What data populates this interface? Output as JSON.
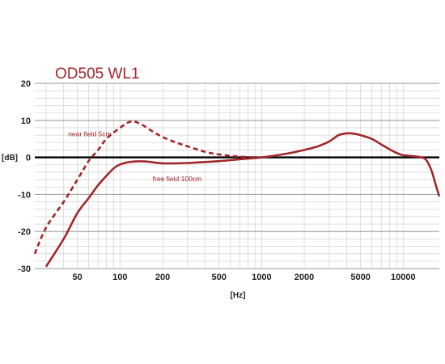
{
  "chart_data": {
    "type": "line",
    "title": "OD505 WL1",
    "xlabel": "[Hz]",
    "ylabel": "[dB]",
    "xscale": "log",
    "xlim": [
      25,
      18000
    ],
    "ylim": [
      -30,
      20
    ],
    "x_ticks": [
      50,
      100,
      200,
      500,
      1000,
      2000,
      5000,
      10000
    ],
    "y_ticks": [
      20,
      10,
      0,
      -10,
      -20,
      -30
    ],
    "grid": true,
    "colors": {
      "curve": "#a1272b",
      "zero_line": "#000000",
      "grid": "#d6d6d6"
    },
    "series": [
      {
        "name": "near field 5cm",
        "style": "dashed",
        "points": [
          [
            25,
            -26
          ],
          [
            30,
            -19
          ],
          [
            40,
            -12
          ],
          [
            50,
            -6
          ],
          [
            60,
            -1
          ],
          [
            70,
            2
          ],
          [
            80,
            5
          ],
          [
            100,
            8
          ],
          [
            120,
            9.7
          ],
          [
            140,
            9
          ],
          [
            170,
            7
          ],
          [
            200,
            5.5
          ],
          [
            250,
            4
          ],
          [
            300,
            3
          ],
          [
            400,
            1.5
          ],
          [
            500,
            0.8
          ],
          [
            700,
            0.2
          ],
          [
            900,
            0
          ]
        ]
      },
      {
        "name": "free field 100cm",
        "style": "solid",
        "points": [
          [
            30,
            -29.5
          ],
          [
            40,
            -22
          ],
          [
            50,
            -15
          ],
          [
            60,
            -11
          ],
          [
            70,
            -7.5
          ],
          [
            80,
            -5
          ],
          [
            90,
            -3
          ],
          [
            100,
            -1.9
          ],
          [
            120,
            -1.2
          ],
          [
            150,
            -1.1
          ],
          [
            200,
            -1.6
          ],
          [
            300,
            -1.5
          ],
          [
            500,
            -1
          ],
          [
            700,
            -0.5
          ],
          [
            1000,
            0
          ],
          [
            1500,
            1
          ],
          [
            2000,
            2
          ],
          [
            2500,
            3
          ],
          [
            3000,
            4.3
          ],
          [
            3500,
            6
          ],
          [
            4000,
            6.5
          ],
          [
            4500,
            6.4
          ],
          [
            5000,
            6
          ],
          [
            6000,
            5
          ],
          [
            7000,
            3.5
          ],
          [
            8000,
            2.2
          ],
          [
            9000,
            1.2
          ],
          [
            10000,
            0.6
          ],
          [
            12000,
            0.3
          ],
          [
            14000,
            -0.2
          ],
          [
            15000,
            -1.5
          ],
          [
            16000,
            -4
          ],
          [
            17000,
            -7.5
          ],
          [
            18000,
            -10.5
          ]
        ]
      }
    ],
    "annotations": [
      {
        "text": "near field 5cm",
        "x": 43,
        "y": 6.3
      },
      {
        "text": "free field 100cm",
        "x": 170,
        "y": -5.8
      }
    ]
  }
}
